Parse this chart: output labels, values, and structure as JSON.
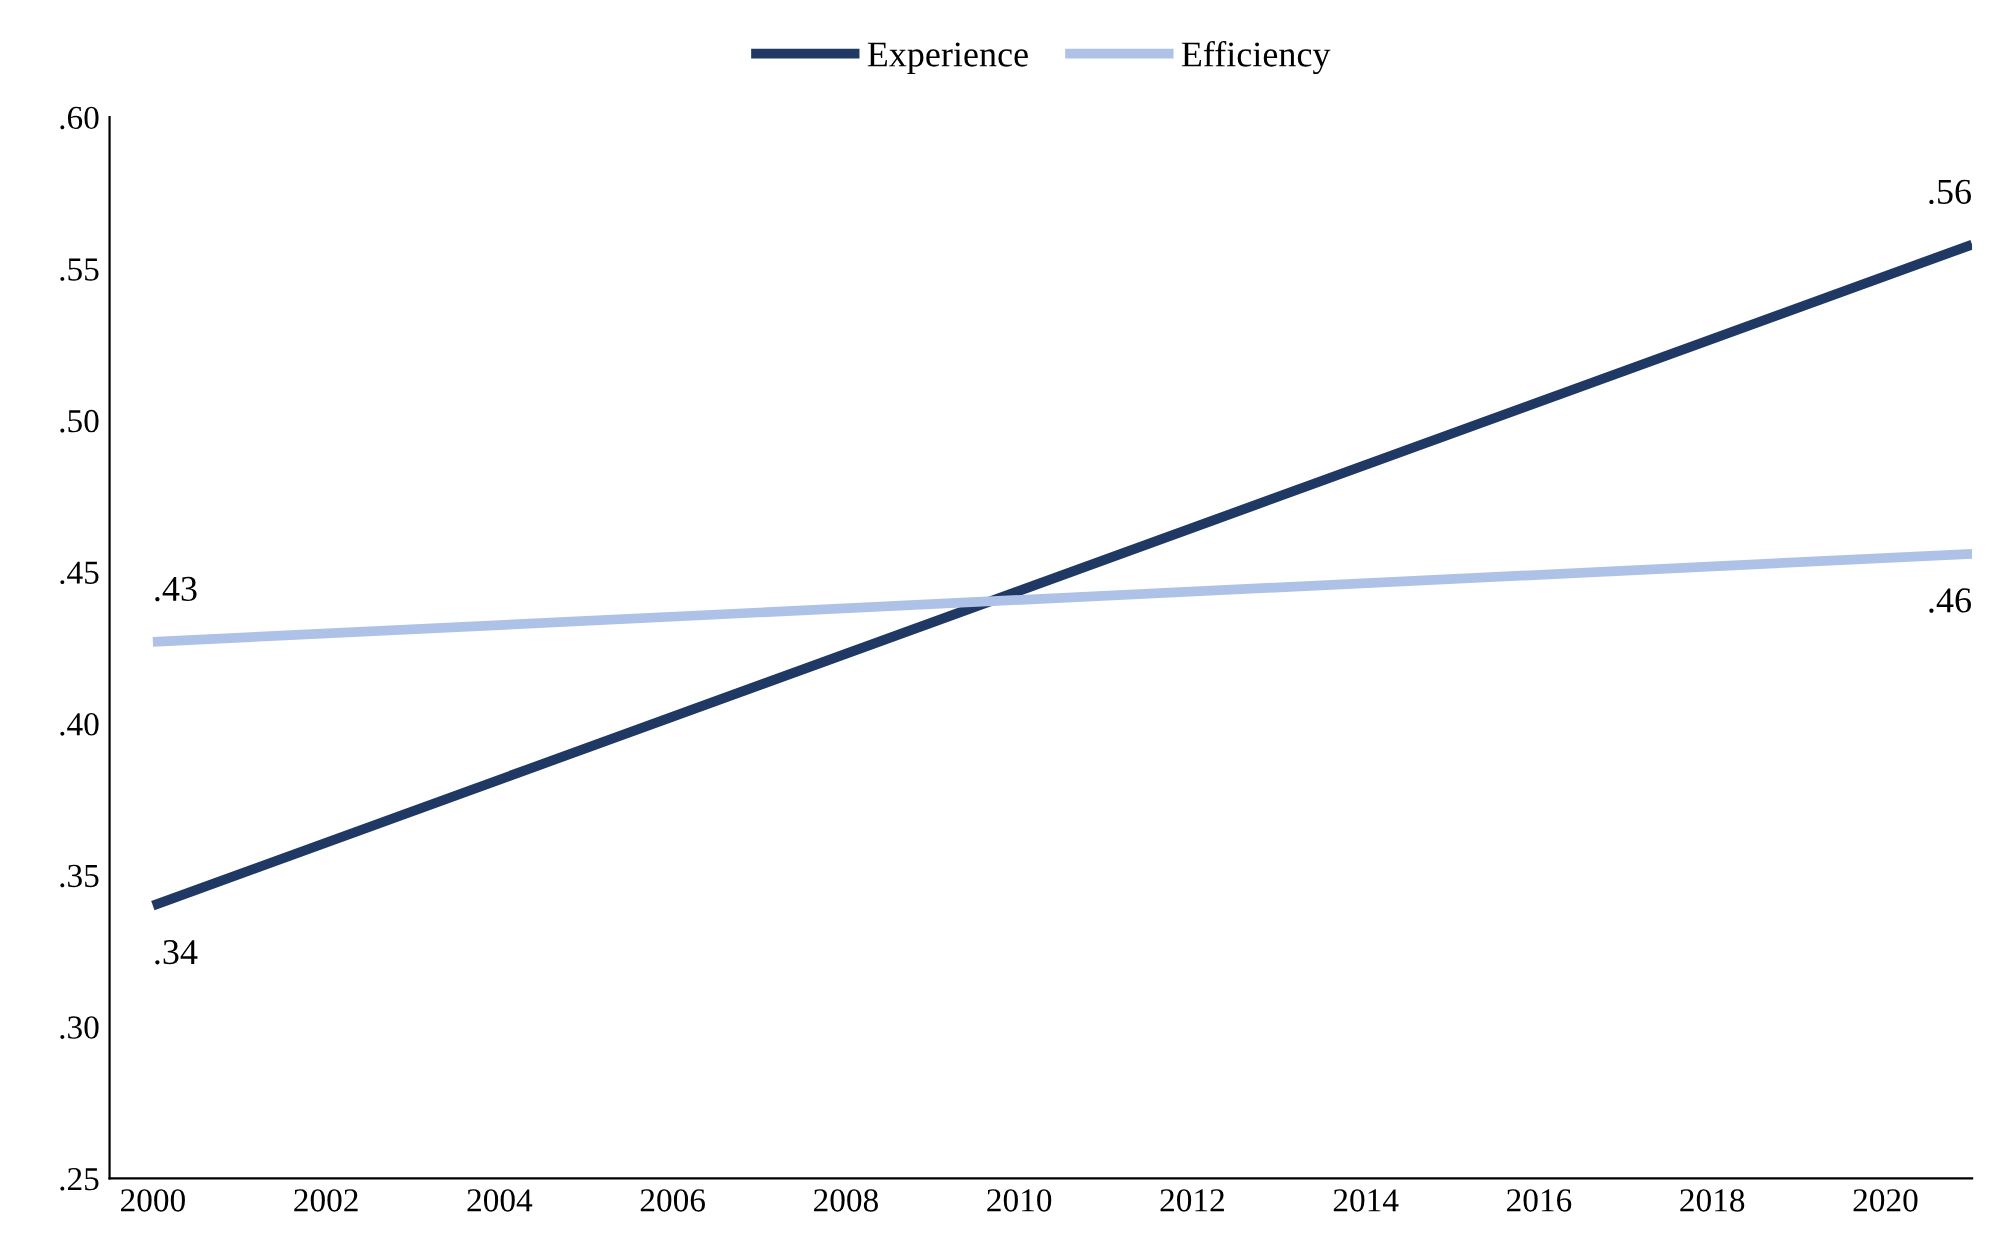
{
  "chart_data": {
    "type": "line",
    "x": [
      2000,
      2021
    ],
    "series": [
      {
        "name": "Experience",
        "color": "#1f3864",
        "values": [
          0.34,
          0.558
        ],
        "value_labels": [
          ".34",
          ".56"
        ]
      },
      {
        "name": "Efficiency",
        "color": "#adc2e6",
        "values": [
          0.427,
          0.456
        ],
        "value_labels": [
          ".43",
          ".46"
        ]
      }
    ],
    "xlim": [
      1999.5,
      2021
    ],
    "xticks": [
      2000,
      2002,
      2004,
      2006,
      2008,
      2010,
      2012,
      2014,
      2016,
      2018,
      2020
    ],
    "ylim": [
      0.25,
      0.6
    ],
    "yticks": [
      {
        "value": 0.25,
        "label": ".25"
      },
      {
        "value": 0.3,
        "label": ".30"
      },
      {
        "value": 0.35,
        "label": ".35"
      },
      {
        "value": 0.4,
        "label": ".40"
      },
      {
        "value": 0.45,
        "label": ".45"
      },
      {
        "value": 0.5,
        "label": ".50"
      },
      {
        "value": 0.55,
        "label": ".55"
      },
      {
        "value": 0.6,
        "label": ".60"
      }
    ],
    "legend": "top",
    "grid": false,
    "marker": "none",
    "line_style": "solid"
  }
}
